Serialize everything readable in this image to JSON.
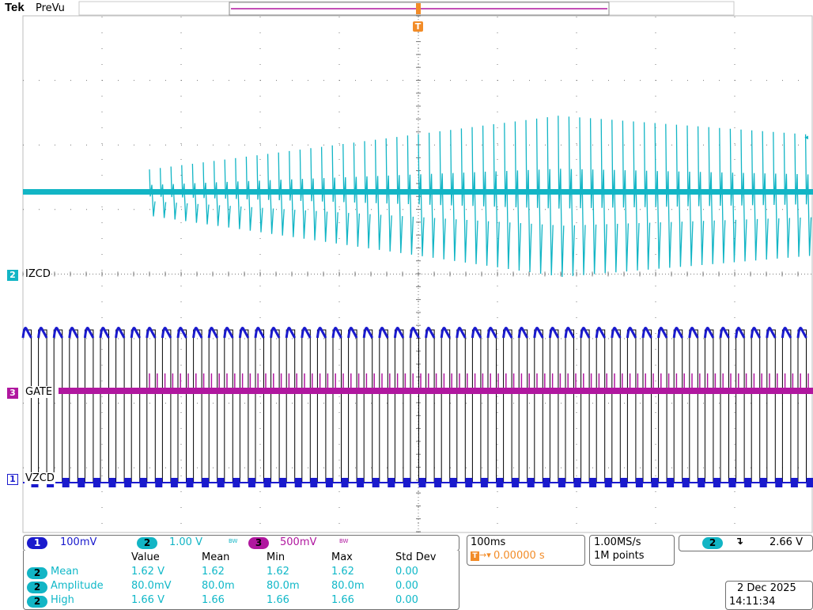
{
  "header": {
    "logo": "Tek",
    "mode": "PreVu"
  },
  "trigger_marker": {
    "label": "T",
    "color": "#f28c28"
  },
  "channels": [
    {
      "num": "1",
      "label": "VZCD",
      "color": "#1a1acd",
      "scale": "100mV",
      "bw": ""
    },
    {
      "num": "2",
      "label": "IZCD",
      "color": "#12b5c5",
      "scale": "1.00 V",
      "bw": "BW"
    },
    {
      "num": "3",
      "label": "GATE",
      "color": "#b0179f",
      "scale": "500mV",
      "bw": "BW"
    }
  ],
  "measurements": {
    "headers": [
      "Value",
      "Mean",
      "Min",
      "Max",
      "Std Dev"
    ],
    "rows": [
      {
        "ch": "2",
        "name": "Mean",
        "value": "1.62 V",
        "mean": "1.62",
        "min": "1.62",
        "max": "1.62",
        "std": "0.00"
      },
      {
        "ch": "2",
        "name": "Amplitude",
        "value": "80.0mV",
        "mean": "80.0m",
        "min": "80.0m",
        "max": "80.0m",
        "std": "0.00"
      },
      {
        "ch": "2",
        "name": "High",
        "value": "1.66 V",
        "mean": "1.66",
        "min": "1.66",
        "max": "1.66",
        "std": "0.00"
      }
    ]
  },
  "timebase": {
    "scale": "100ms",
    "position_icon": "T",
    "position": "0.00000 s"
  },
  "acquisition": {
    "rate": "1.00MS/s",
    "points": "1M points"
  },
  "trigger": {
    "ch": "2",
    "slope_icon": "falling-edge-icon",
    "slope_glyph": "↴",
    "level": "2.66 V"
  },
  "datetime": {
    "date": "2 Dec  2025",
    "time": "14:11:34"
  },
  "colors": {
    "ch1": "#1a1acd",
    "ch2": "#12b5c5",
    "ch3": "#b0179f",
    "grid": "#777777",
    "trigger": "#f28c28"
  }
}
